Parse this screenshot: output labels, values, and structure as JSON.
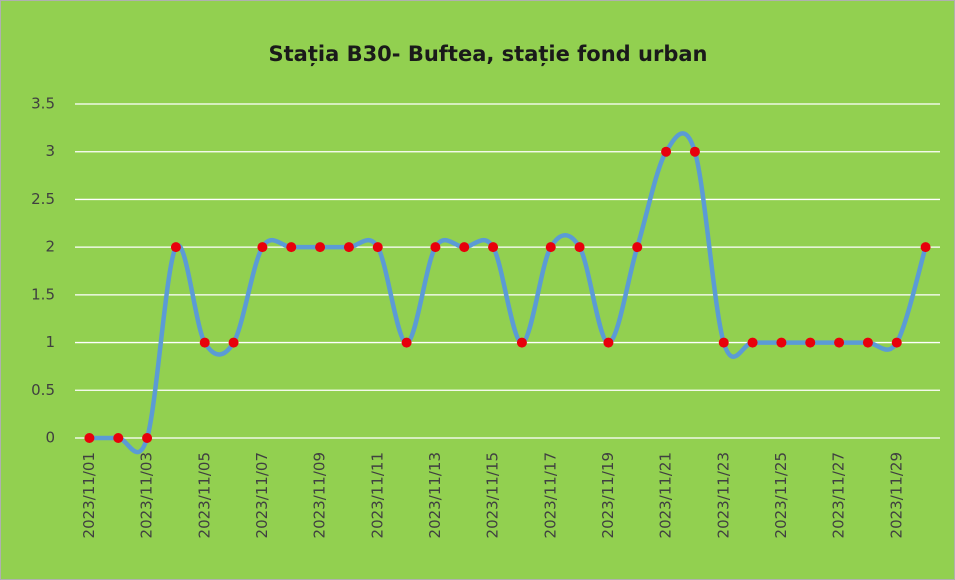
{
  "chart_data": {
    "type": "line",
    "title": "Stația B30- Buftea, stație fond urban",
    "categories": [
      "2023/11/01",
      null,
      "2023/11/03",
      null,
      "2023/11/05",
      null,
      "2023/11/07",
      null,
      "2023/11/09",
      null,
      "2023/11/11",
      null,
      "2023/11/13",
      null,
      "2023/11/15",
      null,
      "2023/11/17",
      null,
      "2023/11/19",
      null,
      "2023/11/21",
      null,
      "2023/11/23",
      null,
      "2023/11/25",
      null,
      "2023/11/27",
      null,
      "2023/11/29",
      null
    ],
    "values": [
      0,
      0,
      0,
      2,
      1,
      1,
      2,
      2,
      2,
      2,
      2,
      1,
      2,
      2,
      2,
      1,
      2,
      2,
      1,
      2,
      3,
      3,
      1,
      1,
      1,
      1,
      1,
      1,
      1,
      2
    ],
    "color": "#5b9bd5",
    "marker_color": "#e8000b",
    "smooth": true,
    "ylim": [
      0,
      3.5
    ],
    "yticks": [
      0,
      0.5,
      1,
      1.5,
      2,
      2.5,
      3,
      3.5
    ],
    "grid": true
  }
}
